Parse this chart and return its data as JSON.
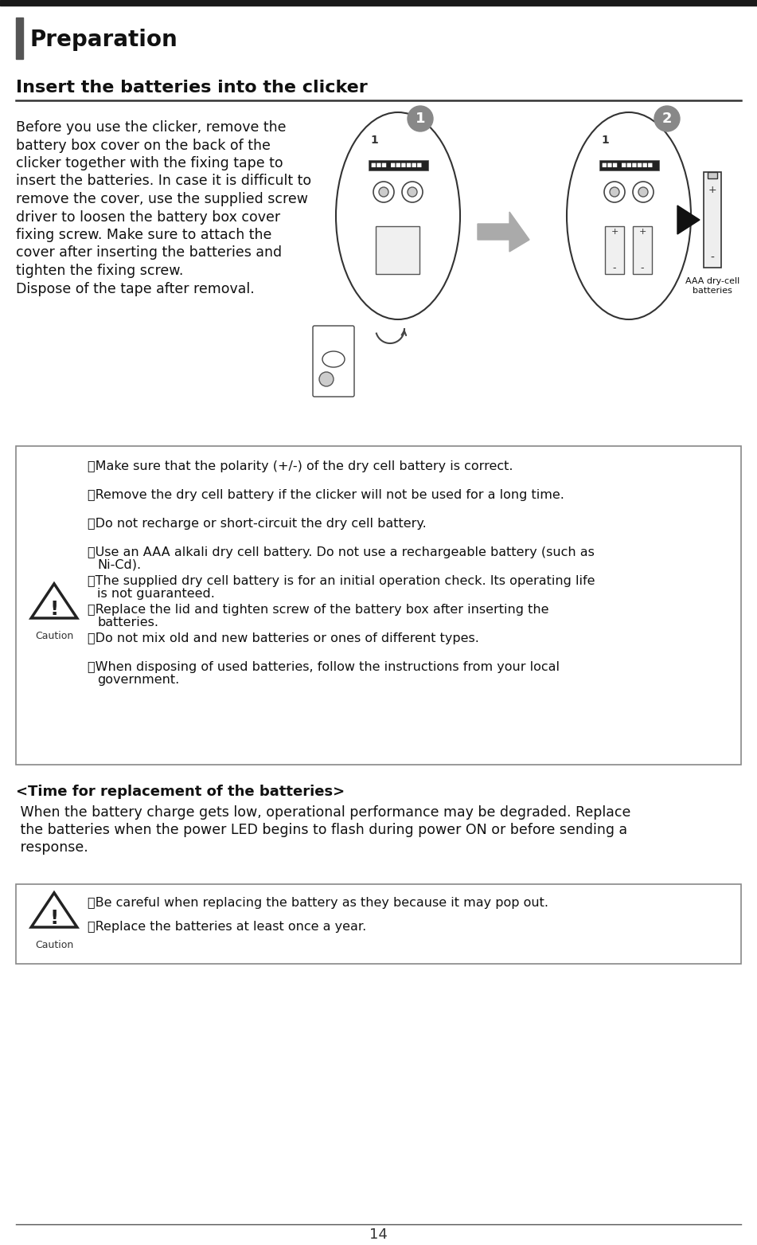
{
  "bg_color": "#ffffff",
  "top_bar_color": "#1a1a1a",
  "section_bar_color": "#555555",
  "section_title": "Preparation",
  "section_title_fontsize": 20,
  "subsection_title": "Insert the batteries into the clicker",
  "subsection_fontsize": 16,
  "body_text_lines": [
    "Before you use the clicker, remove the",
    "battery box cover on the back of the",
    "clicker together with the fixing tape to",
    "insert the batteries. In case it is difficult to",
    "remove the cover, use the supplied screw",
    "driver to loosen the battery box cover",
    "fixing screw. Make sure to attach the",
    "cover after inserting the batteries and",
    "tighten the fixing screw.",
    "Dispose of the tape after removal."
  ],
  "body_fontsize": 12.5,
  "caution_box1_lines": [
    [
      "・Make sure that the polarity (+/-) of the dry cell battery is correct.",
      ""
    ],
    [
      "・Remove the dry cell battery if the clicker will not be used for a long time.",
      ""
    ],
    [
      "・Do not recharge or short-circuit the dry cell battery.",
      ""
    ],
    [
      "・Use an AAA alkali dry cell battery. Do not use a rechargeable battery (such as",
      "  Ni-Cd)."
    ],
    [
      "・The supplied dry cell battery is for an initial operation check. Its operating life",
      "  is not guaranteed."
    ],
    [
      "・Replace the lid and tighten screw of the battery box after inserting the",
      "  batteries."
    ],
    [
      "・Do not mix old and new batteries or ones of different types.",
      ""
    ],
    [
      "・When disposing of used batteries, follow the instructions from your local",
      "  government."
    ]
  ],
  "time_replacement_title": "<Time for replacement of the batteries>",
  "time_replacement_text_lines": [
    " When the battery charge gets low, operational performance may be degraded. Replace",
    " the batteries when the power LED begins to flash during power ON or before sending a",
    " response."
  ],
  "caution_box2_lines": [
    "・Be careful when replacing the battery as they because it may pop out.",
    "・Replace the batteries at least once a year."
  ],
  "page_number": "14",
  "caution_fontsize": 11.5,
  "box_border_color": "#888888"
}
